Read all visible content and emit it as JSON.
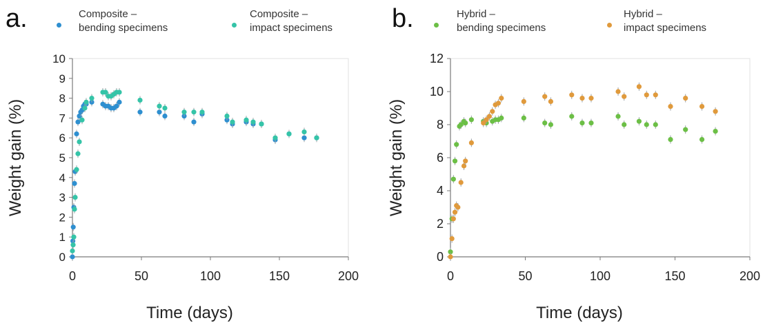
{
  "panels": {
    "a": {
      "label": "a.",
      "legend": [
        {
          "line1": "Composite –",
          "line2": "bending specimens"
        },
        {
          "line1": "Composite –",
          "line2": "impact specimens"
        }
      ]
    },
    "b": {
      "label": "b.",
      "legend": [
        {
          "line1": "Hybrid –",
          "line2": "bending specimens"
        },
        {
          "line1": "Hybrid –",
          "line2": "impact specimens"
        }
      ]
    }
  },
  "chart_data": [
    {
      "type": "scatter",
      "xlabel": "Time (days)",
      "ylabel": "Weight gain (%)",
      "xlim": [
        0,
        200
      ],
      "ylim": [
        0,
        10
      ],
      "xticks": [
        0,
        50,
        100,
        150,
        200
      ],
      "yticks": [
        0,
        1,
        2,
        3,
        4,
        5,
        6,
        7,
        8,
        9,
        10
      ],
      "grid": false,
      "legend_position": "top",
      "series": [
        {
          "name": "Composite – bending specimens",
          "color": "#2e8fd0",
          "x": [
            0,
            0.3,
            0.6,
            1,
            1.5,
            2,
            3,
            4,
            5,
            6,
            7,
            8,
            9,
            10,
            14,
            22,
            24,
            26,
            28,
            30,
            32,
            34,
            49,
            63,
            67,
            81,
            88,
            94,
            112,
            116,
            126,
            131,
            137,
            147,
            157,
            168,
            177
          ],
          "y": [
            0,
            0.8,
            1.5,
            2.5,
            3.7,
            4.3,
            6.2,
            6.8,
            7.1,
            7.3,
            7.4,
            7.6,
            7.7,
            7.7,
            7.8,
            7.7,
            7.6,
            7.6,
            7.5,
            7.5,
            7.6,
            7.8,
            7.3,
            7.3,
            7.1,
            7.1,
            6.8,
            7.2,
            6.9,
            6.7,
            6.8,
            6.7,
            6.7,
            5.9,
            6.2,
            6.0,
            6.0
          ]
        },
        {
          "name": "Composite – impact specimens",
          "color": "#35c4a8",
          "x": [
            0,
            0.5,
            1,
            1.5,
            2,
            3,
            4,
            5,
            7,
            9,
            10,
            14,
            22,
            24,
            26,
            28,
            30,
            32,
            34,
            49,
            63,
            67,
            81,
            88,
            94,
            112,
            116,
            126,
            131,
            137,
            147,
            157,
            168,
            177
          ],
          "y": [
            0.3,
            0.6,
            1.0,
            2.4,
            3.0,
            4.4,
            5.2,
            5.8,
            6.9,
            7.5,
            7.8,
            8.0,
            8.3,
            8.3,
            8.1,
            8.1,
            8.2,
            8.3,
            8.3,
            7.9,
            7.6,
            7.5,
            7.3,
            7.3,
            7.3,
            7.1,
            6.8,
            6.9,
            6.8,
            6.7,
            6.0,
            6.2,
            6.3,
            6.0
          ]
        }
      ]
    },
    {
      "type": "scatter",
      "xlabel": "Time (days)",
      "ylabel": "Weight gain (%)",
      "xlim": [
        0,
        200
      ],
      "ylim": [
        0,
        12
      ],
      "xticks": [
        0,
        50,
        100,
        150,
        200
      ],
      "yticks": [
        0,
        2,
        4,
        6,
        8,
        10,
        12
      ],
      "grid": false,
      "legend_position": "top",
      "series": [
        {
          "name": "Hybrid – bending specimens",
          "color": "#6cbf46",
          "x": [
            0,
            1,
            2,
            3,
            4,
            6,
            7,
            9,
            10,
            14,
            22,
            24,
            28,
            30,
            32,
            34,
            49,
            63,
            67,
            81,
            88,
            94,
            112,
            116,
            126,
            131,
            137,
            147,
            157,
            168,
            177
          ],
          "y": [
            0.3,
            2.3,
            4.7,
            5.8,
            6.8,
            7.9,
            8.0,
            8.2,
            8.1,
            8.3,
            8.2,
            8.1,
            8.2,
            8.3,
            8.3,
            8.4,
            8.4,
            8.1,
            8.0,
            8.5,
            8.1,
            8.1,
            8.5,
            8.0,
            8.2,
            8.0,
            8.0,
            7.1,
            7.7,
            7.1,
            7.6
          ]
        },
        {
          "name": "Hybrid – impact specimens",
          "color": "#e09a3c",
          "x": [
            0,
            1,
            2,
            3,
            4,
            5,
            7,
            9,
            10,
            14,
            22,
            24,
            26,
            28,
            30,
            32,
            34,
            49,
            63,
            67,
            81,
            88,
            94,
            112,
            116,
            126,
            131,
            137,
            147,
            157,
            168,
            177
          ],
          "y": [
            0,
            1.1,
            2.3,
            2.7,
            3.1,
            3.0,
            4.5,
            5.5,
            5.8,
            6.9,
            8.1,
            8.3,
            8.5,
            8.8,
            9.2,
            9.3,
            9.6,
            9.4,
            9.7,
            9.4,
            9.8,
            9.6,
            9.6,
            10.0,
            9.7,
            10.3,
            9.8,
            9.8,
            9.1,
            9.6,
            9.1,
            8.8
          ]
        }
      ]
    }
  ]
}
